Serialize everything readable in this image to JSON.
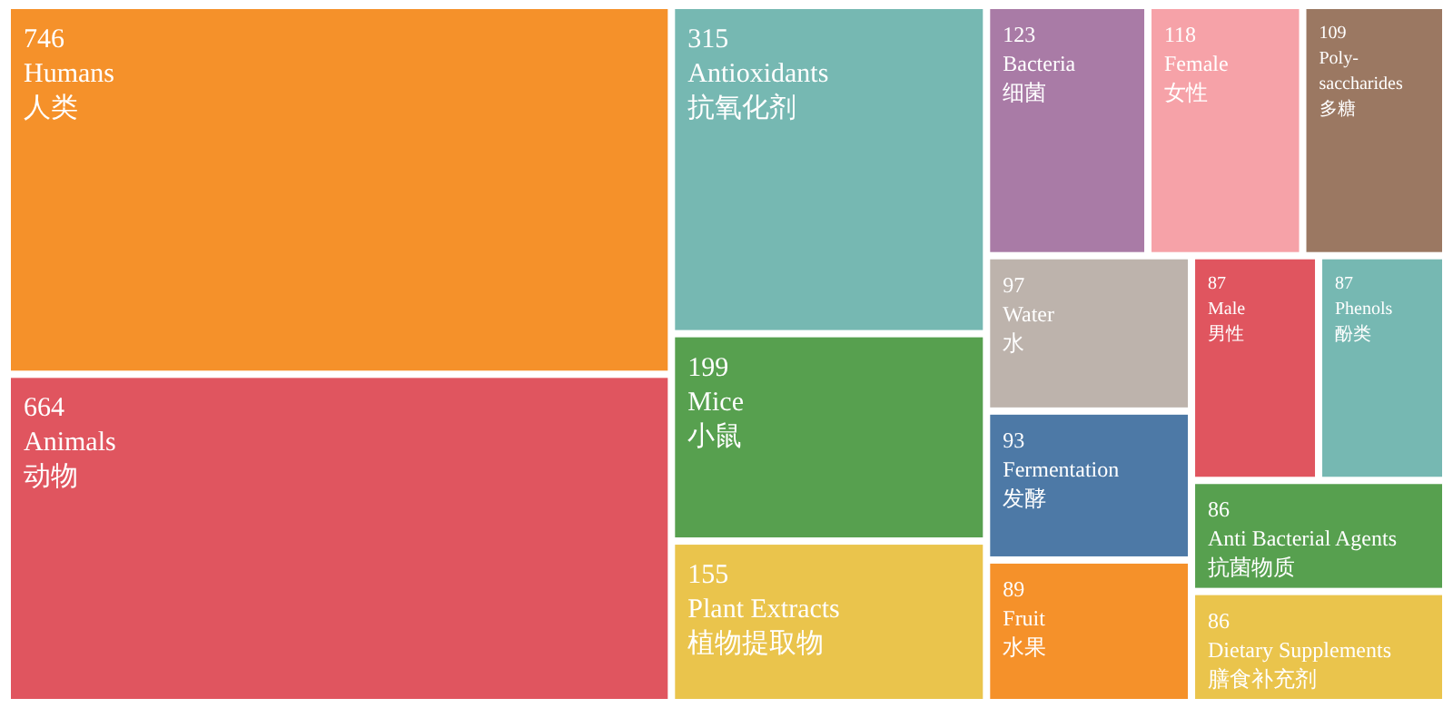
{
  "chart_data": {
    "type": "other",
    "categories": [
      "Humans\n人类",
      "Animals\n动物",
      "Antioxidants\n抗氧化剂",
      "Mice\n小鼠",
      "Plant Extracts\n植物提取物",
      "Bacteria\n细菌",
      "Female\n女性",
      "Poly-\nsaccharides\n多糖",
      "Water\n水",
      "Fermentation\n发酵",
      "Fruit\n水果",
      "Male\n男性",
      "Phenols\n酚类",
      "Anti Bacterial Agents\n抗菌物质",
      "Dietary Supplements\n膳食补充剂"
    ],
    "values": [
      746,
      664,
      315,
      199,
      155,
      123,
      118,
      109,
      97,
      93,
      89,
      87,
      87,
      86,
      86
    ],
    "colors": [
      "#f5912a",
      "#e0555f",
      "#76b8b2",
      "#57a04f",
      "#eac44c",
      "#a97ba6",
      "#f6a2a8",
      "#9b7862",
      "#bdb3ac",
      "#4d79a6",
      "#f5912a",
      "#e0555f",
      "#76b8b2",
      "#57a04f",
      "#eac44c"
    ],
    "data_labels": true
  }
}
